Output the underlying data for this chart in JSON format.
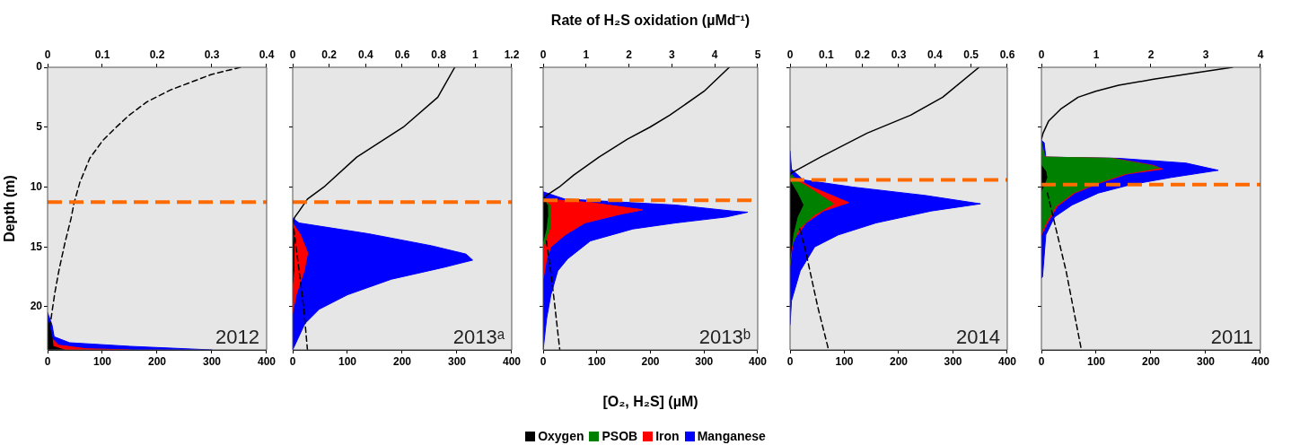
{
  "chart_data": [
    {
      "type": "area",
      "orientation": "horizontal",
      "ylabel": "Depth (m)",
      "ylim": [
        23.6,
        0
      ],
      "yticks": [
        0,
        5,
        10,
        15,
        20
      ],
      "xlim": [
        0,
        400
      ],
      "xticks": [
        0,
        100,
        200,
        300,
        400
      ],
      "x2lim": [
        0,
        0.4
      ],
      "x2ticks": [
        0,
        0.1,
        0.2,
        0.3,
        0.4
      ],
      "annotations": [
        "2012"
      ],
      "ref_lines": [
        {
          "axis": "y",
          "value": 11.25,
          "color": "#ff6a00",
          "line_style": "dashed"
        }
      ],
      "series": [
        {
          "axis": "x2",
          "color": "#000000",
          "x": [
            21,
            22.5,
            23.3,
            23.6
          ],
          "values": [
            0,
            0.008,
            0.01,
            0.03
          ]
        },
        {
          "axis": "x2",
          "color": "#ff0000",
          "x": [
            21.5,
            22.5,
            23.2,
            23.5,
            23.6
          ],
          "values": [
            0,
            0.005,
            0.02,
            0.07,
            0.15
          ]
        },
        {
          "axis": "x2",
          "color": "#0000ff",
          "x": [
            20.5,
            21.5,
            22.5,
            23,
            23.3,
            23.6
          ],
          "values": [
            0,
            0.008,
            0.012,
            0.04,
            0.15,
            0.3
          ]
        },
        {
          "type": "line",
          "color": "#000000",
          "line_style": "dashed",
          "x": [
            0,
            0.6,
            1.9,
            2.9,
            4,
            5.1,
            6.1,
            7.6,
            9.6,
            11.4,
            12.6,
            14.6,
            16.9,
            18.9,
            21.4,
            22.1
          ],
          "values": [
            352,
            299,
            224,
            181,
            149,
            123,
            101,
            77,
            59,
            48,
            43,
            32,
            21,
            13,
            5,
            3
          ]
        }
      ]
    },
    {
      "type": "area",
      "orientation": "horizontal",
      "tick_labels": "x",
      "ylim": [
        23.6,
        0
      ],
      "yticks": [
        0,
        5,
        10,
        15,
        20
      ],
      "xlim": [
        0,
        400
      ],
      "xticks": [
        0,
        100,
        200,
        300,
        400
      ],
      "x2lim": [
        0,
        1.2
      ],
      "x2ticks": [
        0,
        0.2,
        0.4,
        0.6,
        0.8,
        1,
        1.2
      ],
      "annotations": [
        "2013ᵃ"
      ],
      "ref_lines": [
        {
          "axis": "y",
          "value": 11.25,
          "color": "#ff6a00",
          "line_style": "dashed"
        }
      ],
      "series": [
        {
          "axis": "x2",
          "color": "#000000",
          "x": [
            13,
            15,
            17,
            18
          ],
          "values": [
            0,
            0.008,
            0.006,
            0
          ]
        },
        {
          "axis": "x2",
          "color": "#ff0000",
          "x": [
            13,
            14,
            15.5,
            17,
            19,
            20.5
          ],
          "values": [
            0,
            0.043,
            0.082,
            0.063,
            0.019,
            0
          ]
        },
        {
          "axis": "x2",
          "color": "#0000ff",
          "x": [
            12.6,
            13,
            13.9,
            14.9,
            15.6,
            16.1,
            16.7,
            17.7,
            19,
            20.2,
            21.4,
            23.6
          ],
          "values": [
            0,
            0.035,
            0.415,
            0.76,
            0.95,
            0.986,
            0.83,
            0.54,
            0.3,
            0.146,
            0.067,
            0
          ]
        },
        {
          "type": "line",
          "color": "#000000",
          "line_style": "solid",
          "x": [
            0,
            2.5,
            5,
            7.5,
            10,
            11,
            12,
            12.5,
            13
          ],
          "values": [
            296,
            265,
            202,
            117,
            57,
            27,
            12,
            4,
            0
          ]
        },
        {
          "type": "line",
          "color": "#000000",
          "line_style": "dashed",
          "x": [
            13.5,
            16,
            20,
            23.6
          ],
          "values": [
            2,
            9,
            20,
            27
          ]
        }
      ]
    },
    {
      "type": "area",
      "orientation": "horizontal",
      "tick_labels": "x",
      "x2label": "Rate of H₂S oxidation (µMd⁻¹)",
      "xlabel": "[O₂, H₂S] (µM)",
      "legend": "bottom",
      "ylim": [
        23.6,
        0
      ],
      "yticks": [
        0,
        5,
        10,
        15,
        20
      ],
      "xlim": [
        0,
        400
      ],
      "xticks": [
        0,
        100,
        200,
        300,
        400
      ],
      "x2lim": [
        0,
        5
      ],
      "x2ticks": [
        0,
        1,
        2,
        3,
        4,
        5
      ],
      "annotations": [
        "2013ᵇ"
      ],
      "ref_lines": [
        {
          "axis": "y",
          "value": 11.1,
          "color": "#ff6a00",
          "line_style": "dashed"
        }
      ],
      "series": [
        {
          "axis": "x2",
          "name": "Oxygen",
          "color": "#000000",
          "x": [
            10.8,
            11.5,
            12.5,
            13.5,
            14.5
          ],
          "values": [
            0,
            0.09,
            0.1,
            0.07,
            0
          ]
        },
        {
          "axis": "x2",
          "name": "PSOB",
          "color": "#008000",
          "x": [
            11,
            11.5,
            13.5,
            15
          ],
          "values": [
            0,
            0.15,
            0.15,
            0
          ]
        },
        {
          "axis": "x2",
          "name": "Iron",
          "color": "#ff0000",
          "x": [
            11,
            11.3,
            11.9,
            12.3,
            13,
            14,
            15,
            16,
            17.5,
            17.6
          ],
          "values": [
            0,
            1.1,
            2.32,
            1.76,
            0.97,
            0.51,
            0.18,
            0.08,
            0.01,
            0
          ]
        },
        {
          "axis": "x2",
          "name": "Manganese",
          "color": "#0000ff",
          "x": [
            10.4,
            11,
            11.5,
            12,
            12.1,
            12.5,
            13,
            13.5,
            14.5,
            16,
            17,
            19,
            21,
            23.6
          ],
          "values": [
            0,
            0.5,
            3.08,
            4.4,
            4.77,
            4.27,
            3.08,
            2.09,
            1.1,
            0.57,
            0.34,
            0.18,
            0.08,
            0
          ]
        },
        {
          "type": "line",
          "color": "#000000",
          "line_style": "solid",
          "x": [
            0,
            2,
            4,
            5,
            6,
            7.5,
            9,
            10,
            10.7,
            11
          ],
          "values": [
            347,
            300,
            236,
            199,
            157,
            104,
            57,
            30,
            6,
            1
          ]
        },
        {
          "type": "line",
          "color": "#000000",
          "line_style": "dashed",
          "x": [
            14.5,
            17,
            20,
            23.6
          ],
          "values": [
            6,
            14,
            22,
            31
          ]
        }
      ]
    },
    {
      "type": "area",
      "orientation": "horizontal",
      "tick_labels": "x",
      "ylim": [
        23.6,
        0
      ],
      "yticks": [
        0,
        5,
        10,
        15,
        20
      ],
      "xlim": [
        0,
        400
      ],
      "xticks": [
        0,
        100,
        200,
        300,
        400
      ],
      "x2lim": [
        0,
        0.6
      ],
      "x2ticks": [
        0,
        0.1,
        0.2,
        0.3,
        0.4,
        0.5,
        0.6
      ],
      "annotations": [
        "2014"
      ],
      "ref_lines": [
        {
          "axis": "y",
          "value": 9.4,
          "color": "#ff6a00",
          "line_style": "dashed"
        }
      ],
      "series": [
        {
          "axis": "x2",
          "color": "#000000",
          "x": [
            9.5,
            10.5,
            11.5,
            12.5,
            14,
            16
          ],
          "values": [
            0,
            0.02,
            0.036,
            0.02,
            0.008,
            0
          ]
        },
        {
          "axis": "x2",
          "color": "#008000",
          "x": [
            8.8,
            9.5,
            10.2,
            11.4,
            12.3,
            13.5,
            15,
            16.5
          ],
          "values": [
            0,
            0.02,
            0.06,
            0.12,
            0.068,
            0.024,
            0.004,
            0
          ]
        },
        {
          "axis": "x2",
          "color": "#ff0000",
          "x": [
            9,
            10,
            11.3,
            12,
            13,
            14.5,
            16.5
          ],
          "values": [
            0,
            0.06,
            0.162,
            0.092,
            0.044,
            0.008,
            0
          ]
        },
        {
          "axis": "x2",
          "color": "#0000ff",
          "x": [
            7,
            8.5,
            9.4,
            10,
            10.7,
            11.4,
            12,
            13,
            14,
            15,
            17,
            19.5,
            21.5
          ],
          "values": [
            0,
            0.004,
            0.036,
            0.173,
            0.373,
            0.526,
            0.39,
            0.237,
            0.133,
            0.068,
            0.028,
            0.004,
            0
          ]
        },
        {
          "type": "line",
          "color": "#000000",
          "line_style": "solid",
          "x": [
            0,
            2.5,
            4,
            5.5,
            7.5,
            8.5,
            8.8,
            9
          ],
          "values": [
            348,
            281,
            222,
            142,
            56,
            16,
            3,
            0
          ]
        },
        {
          "type": "line",
          "color": "#000000",
          "line_style": "dashed",
          "x": [
            13.5,
            15,
            20,
            23.6
          ],
          "values": [
            18,
            27,
            51,
            71
          ]
        }
      ]
    },
    {
      "type": "area",
      "orientation": "horizontal",
      "tick_labels": "x",
      "ylim": [
        23.6,
        0
      ],
      "yticks": [
        0,
        5,
        10,
        15,
        20
      ],
      "xlim": [
        0,
        400
      ],
      "xticks": [
        0,
        100,
        200,
        300,
        400
      ],
      "x2lim": [
        0,
        4
      ],
      "x2ticks": [
        0,
        1,
        2,
        3,
        4
      ],
      "annotations": [
        "2011"
      ],
      "ref_lines": [
        {
          "axis": "y",
          "value": 9.8,
          "color": "#ff6a00",
          "line_style": "dashed"
        }
      ],
      "series": [
        {
          "axis": "x2",
          "color": "#000000",
          "x": [
            8.2,
            8.7,
            9.2,
            9.7,
            10.3
          ],
          "values": [
            0,
            0.08,
            0.1,
            0.06,
            0
          ]
        },
        {
          "axis": "x2",
          "color": "#008000",
          "x": [
            6.3,
            7.5,
            7.6,
            8.2,
            8.4,
            8.9,
            9.7,
            10.5,
            11.6,
            13,
            13.8
          ],
          "values": [
            0,
            0.06,
            1.28,
            2,
            2.15,
            1.52,
            1,
            0.58,
            0.26,
            0.08,
            0
          ]
        },
        {
          "axis": "x2",
          "color": "#ff0000",
          "x": [
            6.5,
            7.5,
            7.6,
            8.2,
            8.5,
            8.9,
            9.7,
            10.5,
            11.6,
            13,
            14
          ],
          "values": [
            0,
            0.07,
            1.31,
            2.05,
            2.21,
            1.57,
            1.04,
            0.61,
            0.29,
            0.11,
            0
          ]
        },
        {
          "axis": "x2",
          "color": "#0000ff",
          "x": [
            6.1,
            6.3,
            7.5,
            7.6,
            8,
            8.6,
            9.2,
            9.8,
            10.5,
            11.5,
            12.5,
            14,
            17.5,
            17.6
          ],
          "values": [
            0,
            0.05,
            0.08,
            1.41,
            2.64,
            3.23,
            2.37,
            1.63,
            1.04,
            0.56,
            0.24,
            0.08,
            0.02,
            0
          ]
        },
        {
          "type": "line",
          "color": "#000000",
          "line_style": "solid",
          "x": [
            0,
            0.5,
            1,
            1.5,
            2,
            2.5,
            3.5,
            4.5,
            5.5,
            6
          ],
          "values": [
            349,
            275,
            205,
            141,
            99,
            67,
            35,
            13,
            3,
            0
          ]
        },
        {
          "type": "line",
          "color": "#000000",
          "line_style": "dashed",
          "x": [
            10.5,
            13,
            17,
            23.6
          ],
          "values": [
            11,
            24,
            45,
            73
          ]
        }
      ]
    }
  ]
}
